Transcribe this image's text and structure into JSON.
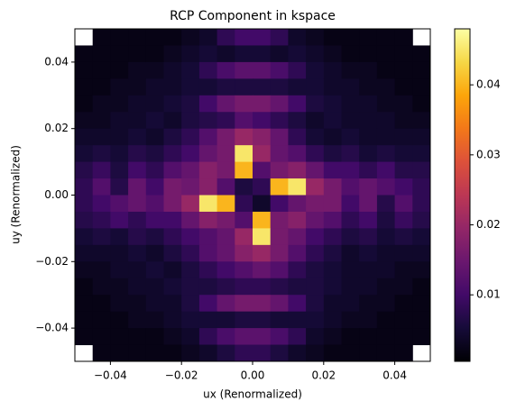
{
  "chart_data": {
    "type": "heatmap",
    "title": "RCP Component in kspace",
    "xlabel": "ux (Renormalized)",
    "ylabel": "uy (Renormalized)",
    "colormap": "inferno",
    "clim": [
      0.0005,
      0.048
    ],
    "colorbar_ticks": [
      0.01,
      0.02,
      0.03,
      0.04
    ],
    "xlim": [
      -0.05,
      0.05
    ],
    "ylim": [
      -0.05,
      0.05
    ],
    "xticks": [
      {
        "value": -0.04,
        "label": "−0.04"
      },
      {
        "value": -0.02,
        "label": "−0.02"
      },
      {
        "value": 0,
        "label": "0.00"
      },
      0.02,
      0.04
    ],
    "yticks": [
      {
        "value": -0.04,
        "label": "−0.04"
      },
      {
        "value": -0.02,
        "label": "−0.02"
      },
      {
        "value": 0,
        "label": "0.00"
      },
      0.02,
      0.04
    ],
    "x": [
      -0.0475,
      -0.0425,
      -0.0375,
      -0.0325,
      -0.0275,
      -0.0225,
      -0.0175,
      -0.0125,
      -0.0075,
      -0.0025,
      0.0025,
      0.0075,
      0.0125,
      0.0175,
      0.0225,
      0.0275,
      0.0325,
      0.0375,
      0.0425,
      0.0475
    ],
    "y": [
      0.0475,
      0.0425,
      0.0375,
      0.0325,
      0.0275,
      0.0225,
      0.0175,
      0.0125,
      0.0075,
      0.0025,
      -0.0025,
      -0.0075,
      -0.0125,
      -0.0175,
      -0.0225,
      -0.0275,
      -0.0325,
      -0.0375,
      -0.0425,
      -0.0475
    ],
    "z": [
      [
        null,
        0.002,
        0.002,
        0.002,
        0.002,
        0.002,
        0.003,
        0.004,
        0.008,
        0.01,
        0.01,
        0.008,
        0.004,
        0.003,
        0.002,
        0.002,
        0.002,
        0.002,
        0.002,
        null
      ],
      [
        0.002,
        0.002,
        0.002,
        0.002,
        0.002,
        0.003,
        0.004,
        0.005,
        0.004,
        0.005,
        0.005,
        0.004,
        0.005,
        0.004,
        0.003,
        0.002,
        0.002,
        0.002,
        0.002,
        0.002
      ],
      [
        0.002,
        0.002,
        0.002,
        0.003,
        0.003,
        0.004,
        0.005,
        0.008,
        0.011,
        0.013,
        0.013,
        0.011,
        0.008,
        0.005,
        0.004,
        0.003,
        0.003,
        0.002,
        0.002,
        0.002
      ],
      [
        0.002,
        0.002,
        0.003,
        0.003,
        0.004,
        0.004,
        0.005,
        0.005,
        0.006,
        0.006,
        0.006,
        0.006,
        0.005,
        0.005,
        0.004,
        0.004,
        0.003,
        0.003,
        0.002,
        0.002
      ],
      [
        0.002,
        0.003,
        0.003,
        0.004,
        0.004,
        0.005,
        0.006,
        0.01,
        0.014,
        0.016,
        0.016,
        0.014,
        0.01,
        0.006,
        0.005,
        0.004,
        0.004,
        0.003,
        0.003,
        0.002
      ],
      [
        0.003,
        0.003,
        0.004,
        0.004,
        0.005,
        0.004,
        0.006,
        0.007,
        0.008,
        0.012,
        0.01,
        0.008,
        0.006,
        0.004,
        0.005,
        0.004,
        0.004,
        0.004,
        0.003,
        0.003
      ],
      [
        0.004,
        0.004,
        0.004,
        0.005,
        0.004,
        0.006,
        0.008,
        0.012,
        0.016,
        0.02,
        0.018,
        0.014,
        0.008,
        0.005,
        0.004,
        0.005,
        0.004,
        0.004,
        0.004,
        0.004
      ],
      [
        0.005,
        0.006,
        0.005,
        0.007,
        0.006,
        0.008,
        0.01,
        0.014,
        0.016,
        0.045,
        0.02,
        0.014,
        0.012,
        0.008,
        0.006,
        0.007,
        0.005,
        0.006,
        0.005,
        0.005
      ],
      [
        0.007,
        0.009,
        0.006,
        0.01,
        0.008,
        0.012,
        0.014,
        0.018,
        0.016,
        0.04,
        0.012,
        0.016,
        0.018,
        0.014,
        0.01,
        0.01,
        0.008,
        0.01,
        0.007,
        0.007
      ],
      [
        0.008,
        0.012,
        0.007,
        0.014,
        0.01,
        0.016,
        0.015,
        0.018,
        0.012,
        0.006,
        0.008,
        0.04,
        0.045,
        0.02,
        0.016,
        0.012,
        0.014,
        0.012,
        0.01,
        0.008
      ],
      [
        0.008,
        0.01,
        0.012,
        0.014,
        0.012,
        0.016,
        0.02,
        0.045,
        0.04,
        0.008,
        0.004,
        0.01,
        0.014,
        0.016,
        0.016,
        0.01,
        0.014,
        0.007,
        0.012,
        0.008
      ],
      [
        0.007,
        0.008,
        0.01,
        0.008,
        0.01,
        0.01,
        0.014,
        0.018,
        0.016,
        0.012,
        0.04,
        0.016,
        0.018,
        0.014,
        0.012,
        0.008,
        0.01,
        0.006,
        0.009,
        0.007
      ],
      [
        0.005,
        0.006,
        0.005,
        0.007,
        0.006,
        0.008,
        0.01,
        0.012,
        0.014,
        0.02,
        0.045,
        0.016,
        0.014,
        0.01,
        0.008,
        0.006,
        0.007,
        0.005,
        0.006,
        0.005
      ],
      [
        0.004,
        0.004,
        0.004,
        0.005,
        0.004,
        0.006,
        0.008,
        0.012,
        0.014,
        0.018,
        0.02,
        0.016,
        0.012,
        0.008,
        0.006,
        0.004,
        0.005,
        0.004,
        0.004,
        0.004
      ],
      [
        0.003,
        0.003,
        0.004,
        0.004,
        0.005,
        0.004,
        0.006,
        0.008,
        0.01,
        0.012,
        0.014,
        0.012,
        0.008,
        0.006,
        0.005,
        0.004,
        0.004,
        0.004,
        0.003,
        0.003
      ],
      [
        0.002,
        0.003,
        0.003,
        0.004,
        0.004,
        0.005,
        0.006,
        0.006,
        0.007,
        0.008,
        0.008,
        0.007,
        0.006,
        0.006,
        0.005,
        0.004,
        0.004,
        0.003,
        0.003,
        0.002
      ],
      [
        0.002,
        0.002,
        0.003,
        0.003,
        0.004,
        0.004,
        0.006,
        0.01,
        0.014,
        0.016,
        0.016,
        0.014,
        0.01,
        0.006,
        0.004,
        0.004,
        0.003,
        0.003,
        0.002,
        0.002
      ],
      [
        0.002,
        0.002,
        0.002,
        0.003,
        0.003,
        0.004,
        0.005,
        0.005,
        0.005,
        0.006,
        0.006,
        0.005,
        0.005,
        0.005,
        0.004,
        0.003,
        0.003,
        0.002,
        0.002,
        0.002
      ],
      [
        0.002,
        0.002,
        0.002,
        0.002,
        0.002,
        0.003,
        0.004,
        0.008,
        0.011,
        0.013,
        0.013,
        0.011,
        0.008,
        0.004,
        0.003,
        0.002,
        0.002,
        0.002,
        0.002,
        0.002
      ],
      [
        null,
        0.002,
        0.002,
        0.002,
        0.002,
        0.002,
        0.003,
        0.004,
        0.006,
        0.008,
        0.008,
        0.006,
        0.004,
        0.003,
        0.002,
        0.002,
        0.002,
        0.002,
        0.002,
        null
      ]
    ]
  }
}
